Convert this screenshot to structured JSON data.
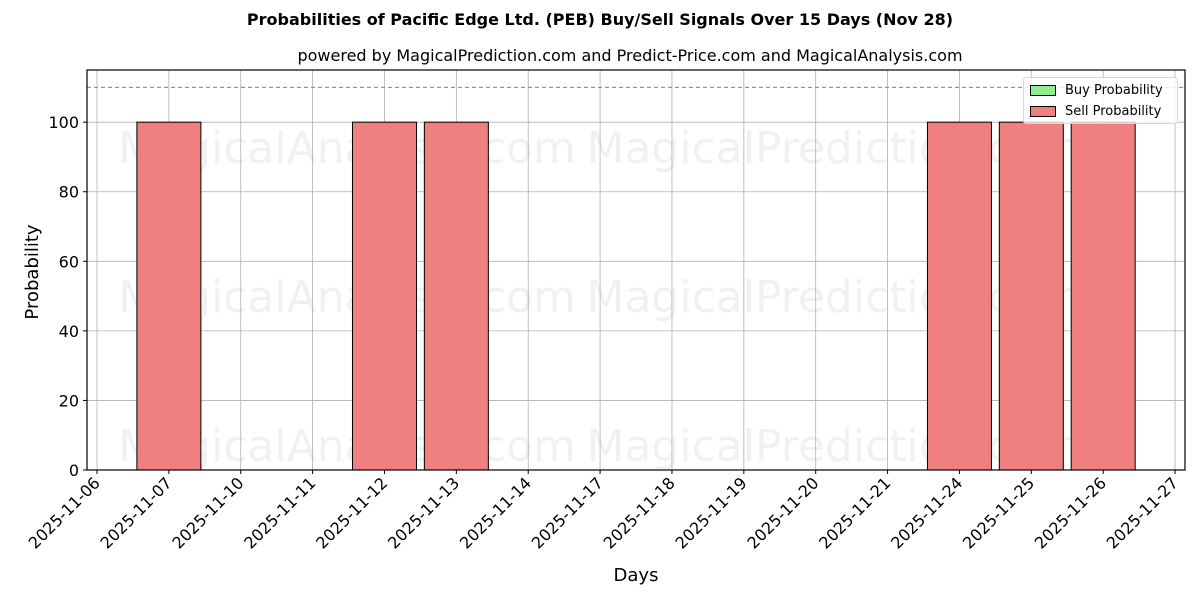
{
  "header": {
    "title": "Probabilities of Pacific Edge Ltd. (PEB) Buy/Sell Signals Over 15 Days (Nov 28)",
    "subtitle": "powered by MagicalPrediction.com and Predict-Price.com and MagicalAnalysis.com"
  },
  "legend": {
    "items": [
      {
        "label": "Buy Probability",
        "color": "#90ee90"
      },
      {
        "label": "Sell Probability",
        "color": "#f08080"
      }
    ]
  },
  "watermarks": [
    "MagicalAnalysis.com",
    "MagicalPrediction.com"
  ],
  "colors": {
    "buy": "#90ee90",
    "sell": "#f08080",
    "grid": "#b0b0b0",
    "threshold": "#808080"
  },
  "chart_data": {
    "type": "bar",
    "title": "Probabilities of Pacific Edge Ltd. (PEB) Buy/Sell Signals Over 15 Days (Nov 28)",
    "subtitle": "powered by MagicalPrediction.com and Predict-Price.com and MagicalAnalysis.com",
    "xlabel": "Days",
    "ylabel": "Probability",
    "categories": [
      "2025-11-06",
      "2025-11-07",
      "2025-11-10",
      "2025-11-11",
      "2025-11-12",
      "2025-11-13",
      "2025-11-14",
      "2025-11-17",
      "2025-11-18",
      "2025-11-19",
      "2025-11-20",
      "2025-11-21",
      "2025-11-24",
      "2025-11-25",
      "2025-11-26",
      "2025-11-27"
    ],
    "series": [
      {
        "name": "Buy Probability",
        "color": "#90ee90",
        "values": [
          0,
          0,
          0,
          0,
          0,
          0,
          0,
          0,
          0,
          0,
          0,
          0,
          0,
          0,
          0,
          0
        ]
      },
      {
        "name": "Sell Probability",
        "color": "#f08080",
        "values": [
          0,
          100,
          0,
          0,
          100,
          100,
          0,
          0,
          0,
          0,
          0,
          0,
          100,
          100,
          100,
          0
        ]
      }
    ],
    "yticks": [
      0,
      20,
      40,
      60,
      80,
      100
    ],
    "ylim": [
      0,
      115
    ],
    "threshold_line": {
      "y": 110,
      "style": "dashed",
      "color": "#808080"
    },
    "grid": true,
    "legend_position": "upper right"
  }
}
